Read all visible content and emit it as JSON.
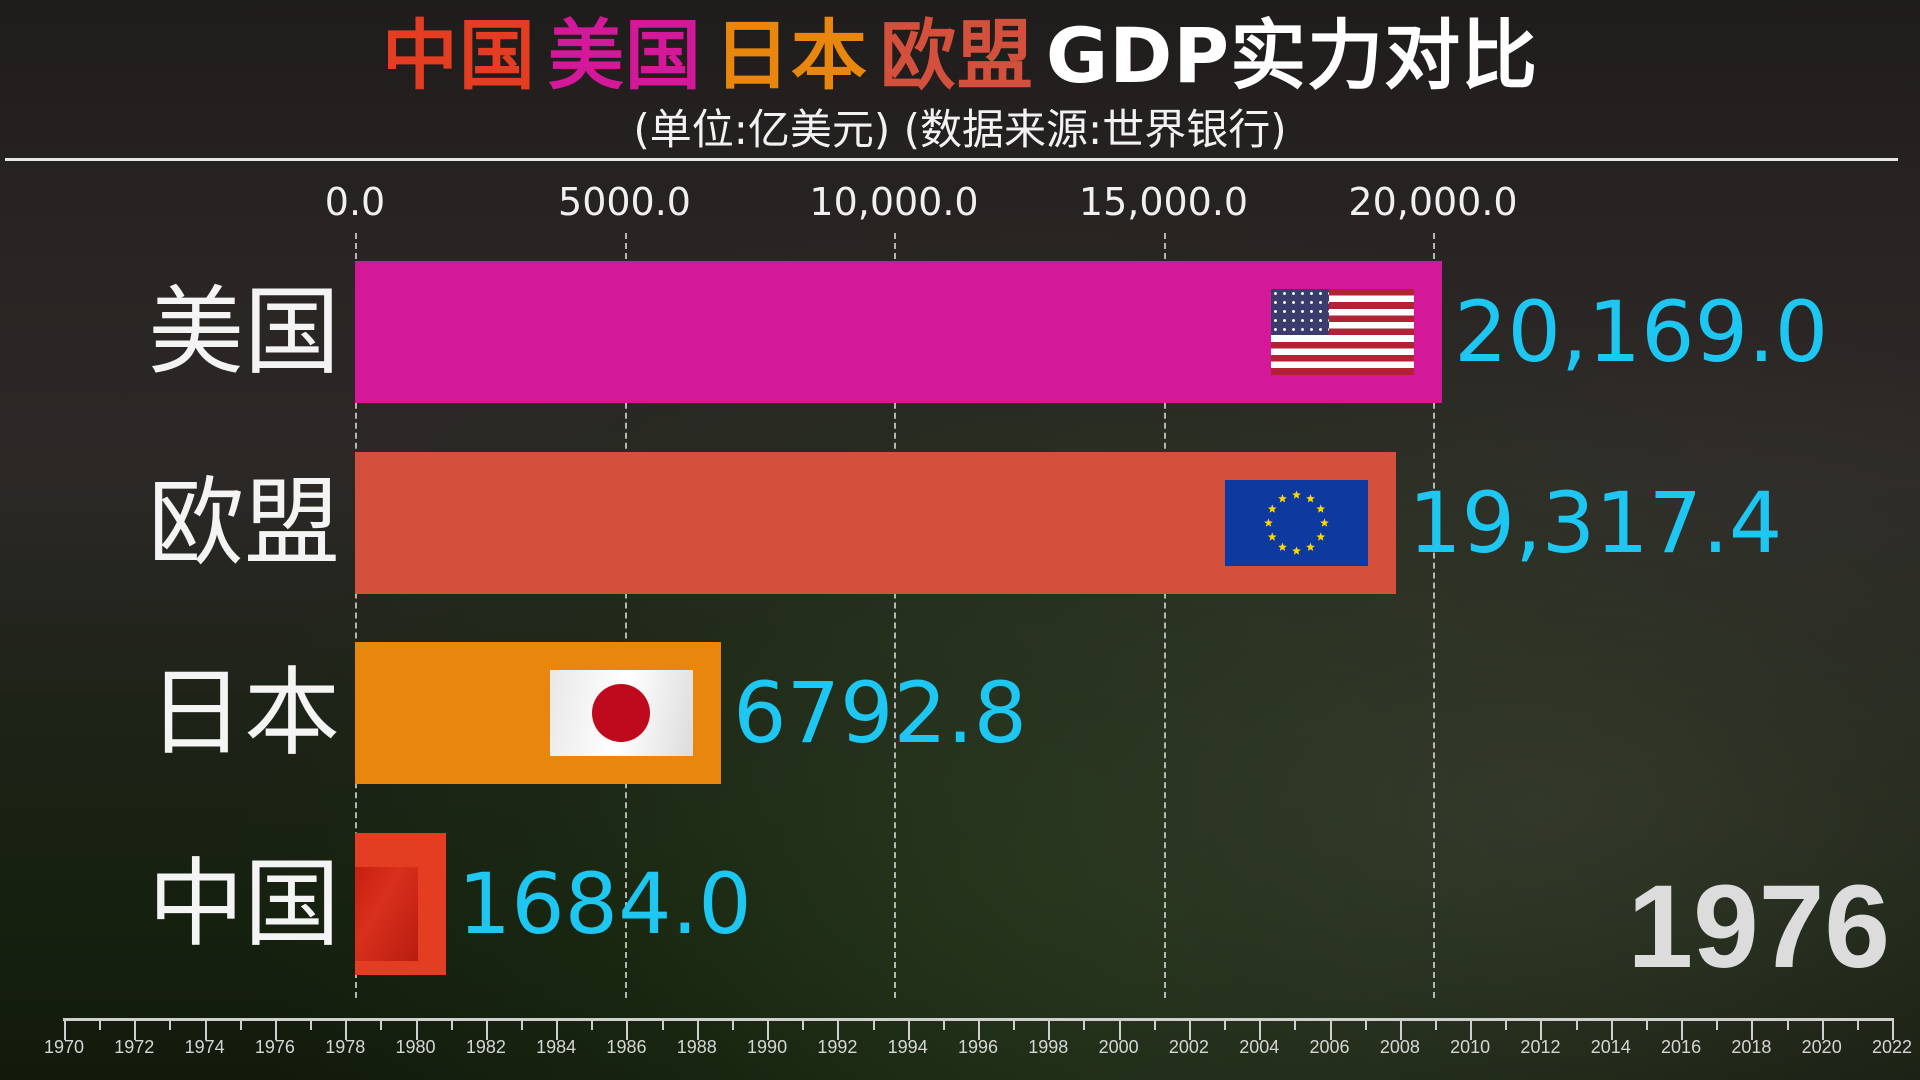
{
  "title": {
    "parts": [
      {
        "text": "中国",
        "color": "#e33d22"
      },
      {
        "text": "美国",
        "color": "#d4189a"
      },
      {
        "text": "日本",
        "color": "#e8860e"
      },
      {
        "text": "欧盟",
        "color": "#d2503c"
      },
      {
        "text": "GDP实力对比",
        "color": "#ffffff"
      }
    ]
  },
  "subtitle": "(单位:亿美元) (数据来源:世界银行)",
  "chart_data": {
    "type": "bar",
    "orientation": "horizontal",
    "title": "中国 美国 日本 欧盟 GDP实力对比",
    "subtitle": "(单位:亿美元) (数据来源:世界银行)",
    "xlim": [
      0,
      20000
    ],
    "x_ticks": [
      "0.0",
      "5000.0",
      "10,000.0",
      "15,000.0",
      "20,000.0"
    ],
    "x_tick_values": [
      0,
      5000,
      10000,
      15000,
      20000
    ],
    "grid": true,
    "categories": [
      "美国",
      "欧盟",
      "日本",
      "中国"
    ],
    "values": [
      20169.0,
      19317.4,
      6792.8,
      1684.0
    ],
    "value_labels": [
      "20,169.0",
      "19,317.4",
      "6792.8",
      "1684.0"
    ],
    "colors": [
      "#d4189a",
      "#d2503c",
      "#e8860e",
      "#e33d22"
    ],
    "flags": [
      "us-flag",
      "eu-flag",
      "japan-flag",
      "china-flag"
    ],
    "value_label_color": "#1ec6f2",
    "current_year": "1976"
  },
  "timeline": {
    "years": [
      "1970",
      "1972",
      "1974",
      "1976",
      "1978",
      "1980",
      "1982",
      "1984",
      "1986",
      "1988",
      "1990",
      "1992",
      "1994",
      "1996",
      "1998",
      "2000",
      "2002",
      "2004",
      "2006",
      "2008",
      "2010",
      "2012",
      "2014",
      "2016",
      "2018",
      "2020",
      "2022"
    ],
    "current": "1976"
  }
}
